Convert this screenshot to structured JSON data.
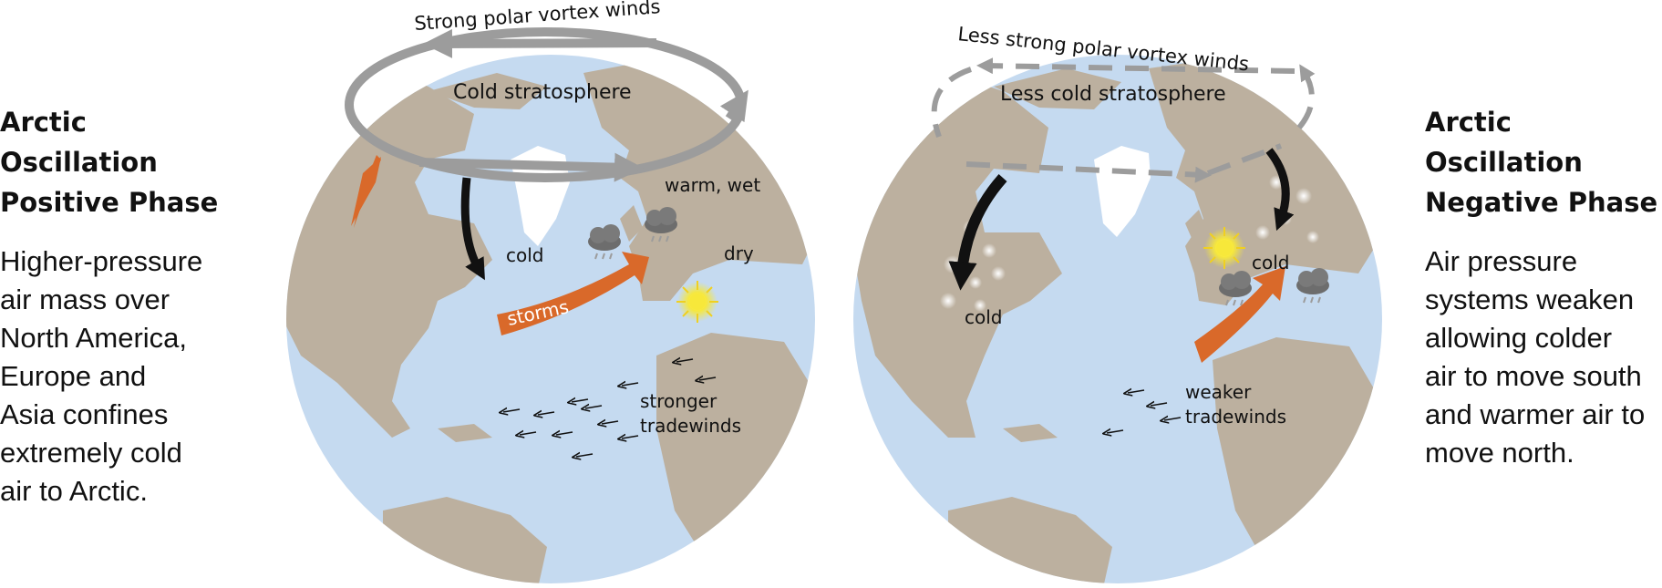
{
  "left_panel": {
    "title_lines": [
      "Arctic",
      "Oscillation",
      "Positive Phase"
    ],
    "desc_lines": [
      "Higher-pressure",
      "air mass over",
      "North America,",
      "Europe and",
      "Asia confines",
      "extremely cold",
      "air to Arctic."
    ]
  },
  "right_panel": {
    "title_lines": [
      "Arctic",
      "Oscillation",
      "Negative Phase"
    ],
    "desc_lines": [
      "Air pressure",
      "systems weaken",
      "allowing colder",
      "air to move south",
      "and warmer air to",
      "move north."
    ]
  },
  "globe_positive": {
    "vortex_label": "Strong polar vortex winds",
    "stratosphere_label": "Cold stratosphere",
    "warm_wet_label": "warm, wet",
    "cold_label": "cold",
    "dry_label": "dry",
    "storms_label": "storms",
    "tradewinds_label_1": "stronger",
    "tradewinds_label_2": "tradewinds"
  },
  "globe_negative": {
    "vortex_label": "Less strong polar vortex winds",
    "stratosphere_label": "Less cold stratosphere",
    "cold_label_west": "cold",
    "cold_label_east": "cold",
    "tradewinds_label_1": "weaker",
    "tradewinds_label_2": "tradewinds"
  },
  "colors": {
    "ocean": "#c5daf0",
    "land": "#bcb09f",
    "vortex": "#9c9c9c",
    "storm_arrow": "#d9692a",
    "cold_arrow": "#111111",
    "sun": "#f7e83a"
  }
}
